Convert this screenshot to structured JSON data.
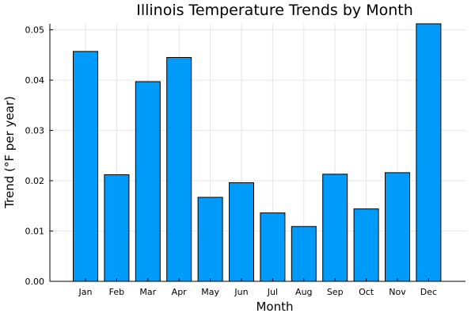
{
  "chart_data": {
    "type": "bar",
    "title": "Illinois Temperature Trends by Month",
    "xlabel": "Month",
    "ylabel": "Trend (°F per year)",
    "categories": [
      "Jan",
      "Feb",
      "Mar",
      "Apr",
      "May",
      "Jun",
      "Jul",
      "Aug",
      "Sep",
      "Oct",
      "Nov",
      "Dec"
    ],
    "values": [
      0.0457,
      0.0212,
      0.0397,
      0.0445,
      0.0167,
      0.0196,
      0.0136,
      0.0109,
      0.0213,
      0.0144,
      0.0216,
      0.0512
    ],
    "ylim": [
      0,
      0.0512
    ],
    "yticks": [
      0.0,
      0.01,
      0.02,
      0.03,
      0.04,
      0.05
    ],
    "ytick_labels": [
      "0.00",
      "0.01",
      "0.02",
      "0.03",
      "0.04",
      "0.05"
    ],
    "bar_color": "#009af9",
    "grid": true,
    "legend": "none"
  }
}
